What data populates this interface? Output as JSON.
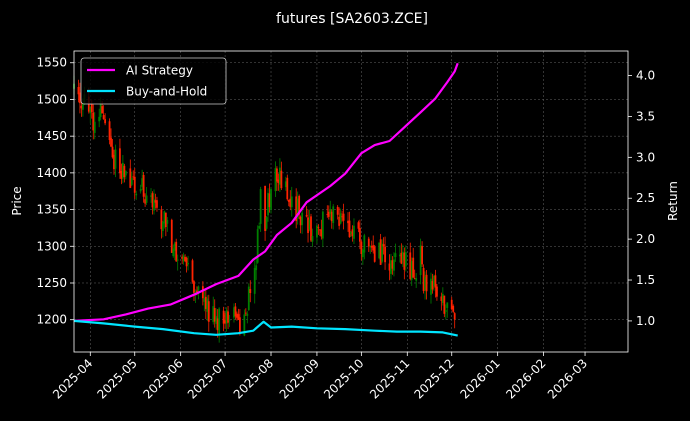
{
  "chart_data": {
    "type": "line",
    "title": "futures [SA2603.ZCE]",
    "ylabel": "Price",
    "y2label": "Return",
    "ylim": [
      1156,
      1566
    ],
    "y2lim": [
      0.62,
      4.3
    ],
    "xlim": [
      "2025-03-21",
      "2026-03-30"
    ],
    "x_ticks": [
      "2025-04",
      "2025-05",
      "2025-06",
      "2025-07",
      "2025-08",
      "2025-09",
      "2025-10",
      "2025-11",
      "2025-12",
      "2026-01",
      "2026-02",
      "2026-03"
    ],
    "y_ticks": [
      1200,
      1250,
      1300,
      1350,
      1400,
      1450,
      1500,
      1550
    ],
    "y2_ticks": [
      "1.0",
      "1.5",
      "2.0",
      "2.5",
      "3.0",
      "3.5",
      "4.0"
    ],
    "grid": true,
    "legend_position": "top-left",
    "candles": {
      "up_color": "#008000",
      "down_color": "#ff2200",
      "close_anchors": [
        [
          "2025-03-21",
          1510
        ],
        [
          "2025-03-28",
          1495
        ],
        [
          "2025-04-04",
          1470
        ],
        [
          "2025-04-10",
          1480
        ],
        [
          "2025-04-17",
          1420
        ],
        [
          "2025-04-24",
          1400
        ],
        [
          "2025-05-02",
          1380
        ],
        [
          "2025-05-08",
          1375
        ],
        [
          "2025-05-15",
          1350
        ],
        [
          "2025-05-22",
          1330
        ],
        [
          "2025-05-29",
          1295
        ],
        [
          "2025-06-05",
          1270
        ],
        [
          "2025-06-12",
          1245
        ],
        [
          "2025-06-19",
          1215
        ],
        [
          "2025-06-26",
          1200
        ],
        [
          "2025-07-03",
          1205
        ],
        [
          "2025-07-10",
          1200
        ],
        [
          "2025-07-17",
          1230
        ],
        [
          "2025-07-22",
          1290
        ],
        [
          "2025-07-25",
          1370
        ],
        [
          "2025-07-28",
          1330
        ],
        [
          "2025-08-01",
          1380
        ],
        [
          "2025-08-07",
          1400
        ],
        [
          "2025-08-14",
          1360
        ],
        [
          "2025-08-21",
          1330
        ],
        [
          "2025-08-28",
          1320
        ],
        [
          "2025-09-04",
          1330
        ],
        [
          "2025-09-11",
          1350
        ],
        [
          "2025-09-18",
          1330
        ],
        [
          "2025-09-25",
          1320
        ],
        [
          "2025-10-09",
          1290
        ],
        [
          "2025-10-16",
          1285
        ],
        [
          "2025-10-23",
          1280
        ],
        [
          "2025-10-30",
          1275
        ],
        [
          "2025-11-06",
          1270
        ],
        [
          "2025-11-13",
          1255
        ],
        [
          "2025-11-20",
          1240
        ],
        [
          "2025-11-27",
          1220
        ],
        [
          "2025-12-03",
          1205
        ]
      ]
    },
    "series": [
      {
        "name": "AI Strategy",
        "color": "#ff00ff",
        "axis": "right",
        "points": [
          [
            "2025-03-21",
            1.0
          ],
          [
            "2025-04-10",
            1.02
          ],
          [
            "2025-04-25",
            1.08
          ],
          [
            "2025-05-10",
            1.15
          ],
          [
            "2025-05-25",
            1.2
          ],
          [
            "2025-06-10",
            1.32
          ],
          [
            "2025-06-25",
            1.45
          ],
          [
            "2025-07-10",
            1.55
          ],
          [
            "2025-07-20",
            1.75
          ],
          [
            "2025-07-28",
            1.85
          ],
          [
            "2025-08-05",
            2.05
          ],
          [
            "2025-08-15",
            2.2
          ],
          [
            "2025-08-25",
            2.45
          ],
          [
            "2025-09-10",
            2.65
          ],
          [
            "2025-09-20",
            2.8
          ],
          [
            "2025-10-01",
            3.05
          ],
          [
            "2025-10-10",
            3.15
          ],
          [
            "2025-10-20",
            3.2
          ],
          [
            "2025-11-01",
            3.4
          ],
          [
            "2025-11-10",
            3.55
          ],
          [
            "2025-11-20",
            3.72
          ],
          [
            "2025-11-28",
            3.92
          ],
          [
            "2025-12-03",
            4.05
          ],
          [
            "2025-12-05",
            4.15
          ]
        ]
      },
      {
        "name": "Buy-and-Hold",
        "color": "#00e5ff",
        "axis": "right",
        "points": [
          [
            "2025-03-21",
            1.0
          ],
          [
            "2025-04-10",
            0.97
          ],
          [
            "2025-05-01",
            0.93
          ],
          [
            "2025-05-20",
            0.9
          ],
          [
            "2025-06-10",
            0.85
          ],
          [
            "2025-06-25",
            0.83
          ],
          [
            "2025-07-10",
            0.85
          ],
          [
            "2025-07-20",
            0.88
          ],
          [
            "2025-07-27",
            0.99
          ],
          [
            "2025-08-01",
            0.92
          ],
          [
            "2025-08-15",
            0.93
          ],
          [
            "2025-09-01",
            0.91
          ],
          [
            "2025-09-20",
            0.9
          ],
          [
            "2025-10-10",
            0.88
          ],
          [
            "2025-10-25",
            0.87
          ],
          [
            "2025-11-10",
            0.87
          ],
          [
            "2025-11-25",
            0.86
          ],
          [
            "2025-12-05",
            0.82
          ]
        ]
      }
    ]
  }
}
